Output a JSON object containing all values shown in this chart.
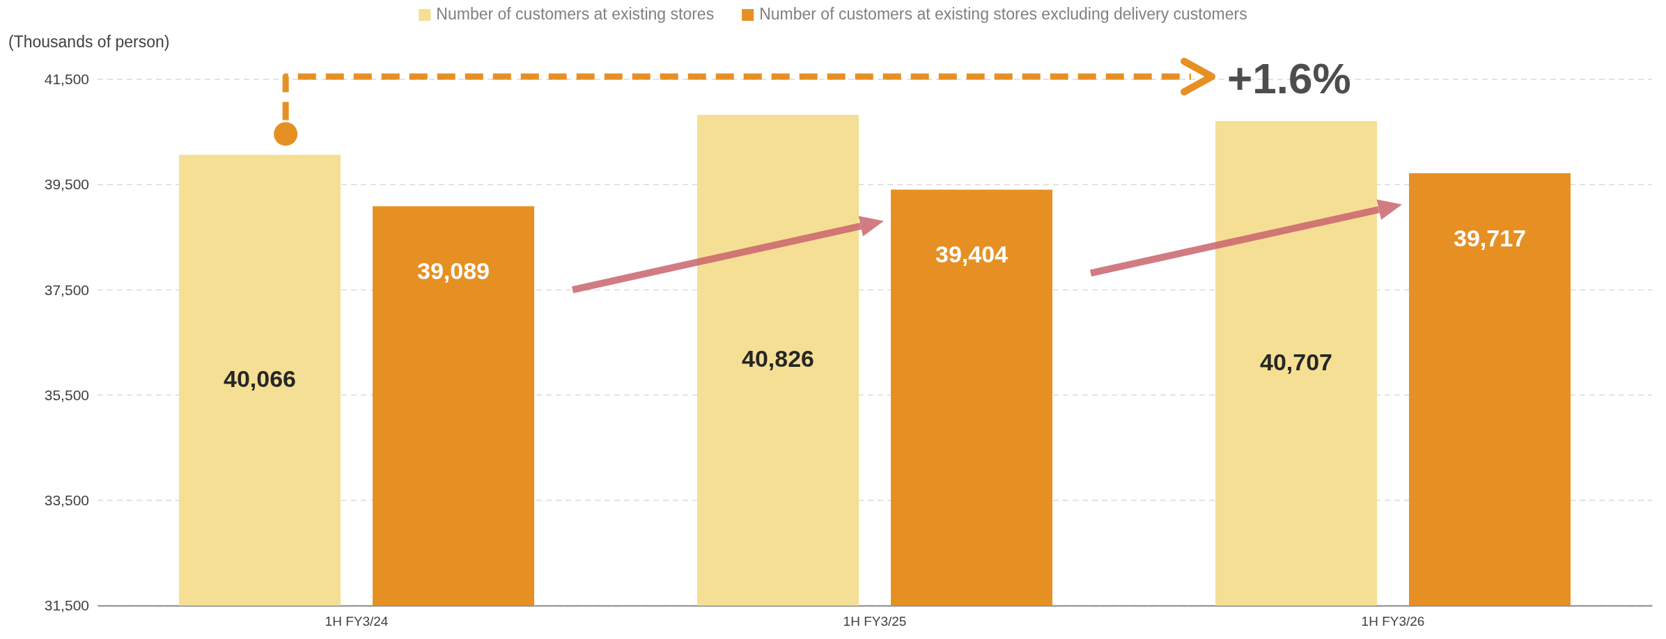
{
  "chart_data": {
    "type": "bar",
    "ylabel": "(Thousands of person)",
    "categories": [
      "1H FY3/24",
      "1H FY3/25",
      "1H FY3/26"
    ],
    "series": [
      {
        "name": "Number of customers at existing stores",
        "color": "#f5df94",
        "values": [
          40066,
          40826,
          40707
        ],
        "value_labels": [
          "40,066",
          "40,826",
          "40,707"
        ]
      },
      {
        "name": "Number of customers at existing stores excluding delivery customers",
        "color": "#e69024",
        "values": [
          39089,
          39404,
          39717
        ],
        "value_labels": [
          "39,089",
          "39,404",
          "39,717"
        ]
      }
    ],
    "ylim": [
      31500,
      41500
    ],
    "yticks": [
      {
        "value": 31500,
        "label": "31,500"
      },
      {
        "value": 33500,
        "label": "33,500"
      },
      {
        "value": 35500,
        "label": "35,500"
      },
      {
        "value": 37500,
        "label": "37,500"
      },
      {
        "value": 39500,
        "label": "39,500"
      },
      {
        "value": 41500,
        "label": "41,500"
      }
    ],
    "grid": "y",
    "legend": "top",
    "annotations": [
      "+1.6%"
    ]
  }
}
